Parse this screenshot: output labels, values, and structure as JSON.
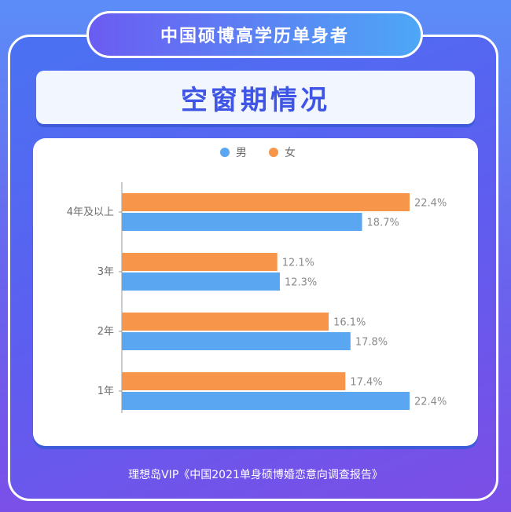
{
  "header": {
    "subtitle": "中国硕博高学历单身者",
    "title": "空窗期情况"
  },
  "legend": [
    {
      "label": "男",
      "color": "#5aa6f0"
    },
    {
      "label": "女",
      "color": "#f7964a"
    }
  ],
  "source": "理想岛VIP《中国2021单身硕博婚恋意向调查报告》",
  "chart_data": {
    "type": "bar",
    "orientation": "horizontal",
    "categories": [
      "4年及以上",
      "3年",
      "2年",
      "1年"
    ],
    "series": [
      {
        "name": "女",
        "color": "#f7964a",
        "values": [
          22.4,
          12.1,
          16.1,
          17.4
        ],
        "labels": [
          "22.4%",
          "12.1%",
          "16.1%",
          "17.4%"
        ]
      },
      {
        "name": "男",
        "color": "#5aa6f0",
        "values": [
          18.7,
          12.3,
          17.8,
          22.4
        ],
        "labels": [
          "18.7%",
          "12.3%",
          "17.8%",
          "22.4%"
        ]
      }
    ],
    "unit": "%",
    "legend_position": "top-center",
    "grid": false
  }
}
